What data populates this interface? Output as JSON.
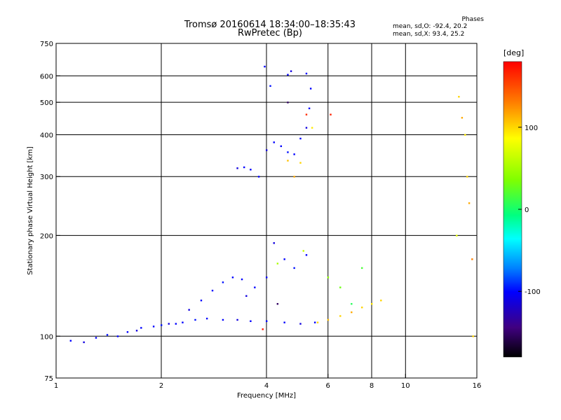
{
  "header": {
    "title": "Tromsø 20160614 18:34:00–18:35:43",
    "subtitle": "RwPretec (Bp)"
  },
  "phase_stats": {
    "heading": "Phases",
    "o_mode": "mean, sd,O: -92.4, 20.2",
    "x_mode": "mean, sd,X:  93.4, 25.2"
  },
  "colorbar": {
    "unit": "[deg]",
    "range": [
      -180,
      180
    ],
    "ticks": [
      {
        "value": 100,
        "label": "100"
      },
      {
        "value": 0,
        "label": "0"
      },
      {
        "value": -100,
        "label": "-100"
      }
    ]
  },
  "chart_data": {
    "type": "scatter",
    "title": "Tromsø 20160614 18:34:00–18:35:43",
    "subtitle": "RwPretec (Bp)",
    "xlabel": "Frequency [MHz]",
    "ylabel": "Stationary phase Virtual Height [km]",
    "xscale": "log",
    "yscale": "log",
    "xlim": [
      1,
      16
    ],
    "ylim": [
      75,
      750
    ],
    "x_ticks": [
      {
        "value": 1,
        "label": "1"
      },
      {
        "value": 2,
        "label": "2"
      },
      {
        "value": 4,
        "label": "4"
      },
      {
        "value": 6,
        "label": "6"
      },
      {
        "value": 8,
        "label": "8"
      },
      {
        "value": 10,
        "label": "10"
      },
      {
        "value": 16,
        "label": "16"
      }
    ],
    "y_ticks": [
      {
        "value": 75,
        "label": "75"
      },
      {
        "value": 100,
        "label": "100"
      },
      {
        "value": 200,
        "label": "200"
      },
      {
        "value": 300,
        "label": "300"
      },
      {
        "value": 400,
        "label": "400"
      },
      {
        "value": 500,
        "label": "500"
      },
      {
        "value": 600,
        "label": "600"
      },
      {
        "value": 750,
        "label": "750"
      }
    ],
    "x_gridlines": [
      2,
      4,
      6,
      8,
      10
    ],
    "y_gridlines": [
      100,
      200,
      300,
      400,
      500,
      600
    ],
    "color_encoding": "phase [deg]",
    "series": [
      {
        "points": [
          [
            1.1,
            97,
            -100
          ],
          [
            1.2,
            96,
            -110
          ],
          [
            1.3,
            99,
            -100
          ],
          [
            1.4,
            101,
            -95
          ],
          [
            1.5,
            100,
            -100
          ],
          [
            1.6,
            103,
            -100
          ],
          [
            1.7,
            104,
            -110
          ],
          [
            1.75,
            106,
            -100
          ],
          [
            1.9,
            107,
            -100
          ],
          [
            2.0,
            108,
            -95
          ],
          [
            2.1,
            109,
            -110
          ],
          [
            2.2,
            109,
            -100
          ],
          [
            2.3,
            110,
            -100
          ],
          [
            2.5,
            112,
            -95
          ],
          [
            2.7,
            113,
            -100
          ],
          [
            3.0,
            112,
            -100
          ],
          [
            3.3,
            112,
            -110
          ],
          [
            3.6,
            111,
            -100
          ],
          [
            4.0,
            111,
            -100
          ],
          [
            4.5,
            110,
            -100
          ],
          [
            5.0,
            109,
            -110
          ],
          [
            5.5,
            110,
            -100
          ]
        ]
      },
      {
        "points": [
          [
            2.4,
            120,
            -110
          ],
          [
            2.6,
            128,
            -100
          ],
          [
            2.8,
            137,
            -100
          ],
          [
            3.0,
            145,
            -95
          ],
          [
            3.2,
            150,
            -100
          ],
          [
            3.4,
            148,
            -100
          ],
          [
            3.5,
            132,
            -110
          ],
          [
            3.7,
            140,
            -100
          ],
          [
            4.0,
            150,
            -100
          ],
          [
            4.2,
            190,
            -110
          ],
          [
            4.5,
            170,
            -100
          ],
          [
            4.8,
            160,
            -95
          ],
          [
            5.2,
            175,
            -100
          ]
        ]
      },
      {
        "points": [
          [
            3.3,
            318,
            -110
          ],
          [
            3.45,
            320,
            -100
          ],
          [
            3.6,
            315,
            -100
          ],
          [
            3.8,
            300,
            -100
          ],
          [
            4.0,
            360,
            -110
          ],
          [
            4.2,
            380,
            -100
          ],
          [
            4.4,
            370,
            -100
          ],
          [
            4.6,
            355,
            -95
          ],
          [
            4.8,
            350,
            -100
          ],
          [
            5.0,
            390,
            -100
          ],
          [
            5.2,
            420,
            -110
          ],
          [
            5.3,
            480,
            -100
          ]
        ]
      },
      {
        "points": [
          [
            3.95,
            640,
            -100
          ],
          [
            4.1,
            560,
            -95
          ],
          [
            4.6,
            605,
            -100
          ],
          [
            4.7,
            620,
            -110
          ],
          [
            5.2,
            610,
            -100
          ],
          [
            5.35,
            550,
            -100
          ]
        ]
      },
      {
        "points": [
          [
            4.6,
            335,
            105
          ],
          [
            4.8,
            300,
            110
          ],
          [
            5.0,
            330,
            100
          ],
          [
            5.4,
            420,
            95
          ],
          [
            5.6,
            110,
            100
          ],
          [
            6.0,
            112,
            105
          ],
          [
            6.5,
            115,
            100
          ],
          [
            7.0,
            118,
            110
          ],
          [
            7.5,
            122,
            100
          ],
          [
            8.0,
            125,
            95
          ],
          [
            8.5,
            128,
            100
          ]
        ]
      },
      {
        "points": [
          [
            6.0,
            150,
            50
          ],
          [
            6.5,
            140,
            40
          ],
          [
            7.0,
            125,
            20
          ],
          [
            7.5,
            160,
            30
          ],
          [
            4.3,
            165,
            60
          ],
          [
            5.1,
            180,
            70
          ]
        ]
      },
      {
        "points": [
          [
            14.2,
            520,
            100
          ],
          [
            14.5,
            450,
            110
          ],
          [
            14.8,
            400,
            95
          ],
          [
            15.0,
            300,
            100
          ],
          [
            15.2,
            250,
            110
          ],
          [
            15.5,
            170,
            120
          ],
          [
            15.6,
            100,
            100
          ],
          [
            14.0,
            200,
            80
          ]
        ]
      },
      {
        "points": [
          [
            3.9,
            105,
            170
          ],
          [
            4.3,
            125,
            -150
          ],
          [
            5.2,
            460,
            160
          ],
          [
            6.1,
            460,
            165
          ],
          [
            4.6,
            500,
            -150
          ]
        ]
      }
    ]
  }
}
